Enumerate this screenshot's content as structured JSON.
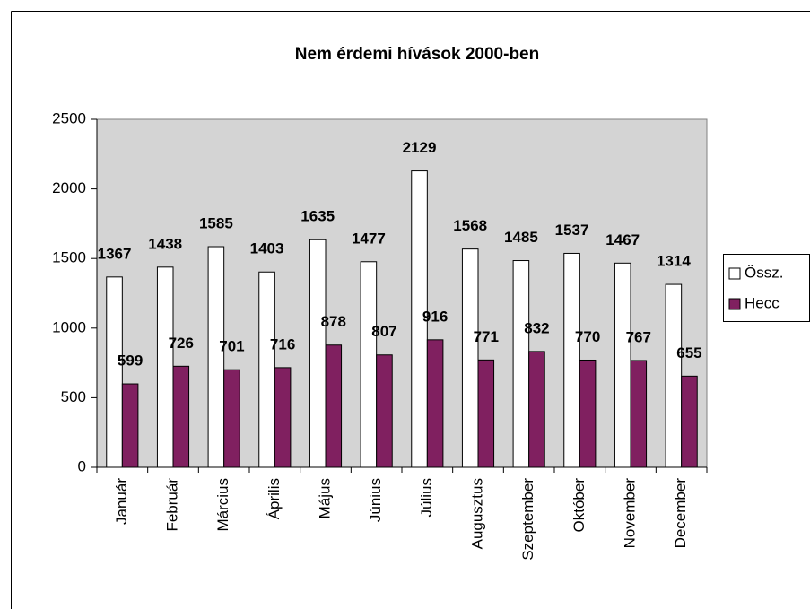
{
  "chart_data": {
    "type": "bar",
    "title": "Nem érdemi hívások 2000-ben",
    "categories": [
      "Január",
      "Február",
      "Március",
      "Április",
      "Május",
      "Június",
      "Július",
      "Augusztus",
      "Szeptember",
      "Október",
      "November",
      "December"
    ],
    "series": [
      {
        "name": "Össz.",
        "color": "#ffffff",
        "values": [
          1367,
          1438,
          1585,
          1403,
          1635,
          1477,
          2129,
          1568,
          1485,
          1537,
          1467,
          1314
        ]
      },
      {
        "name": "Hecc",
        "color": "#802060",
        "values": [
          599,
          726,
          701,
          716,
          878,
          807,
          916,
          771,
          832,
          770,
          767,
          655
        ]
      }
    ],
    "ylim": [
      0,
      2500
    ],
    "yticks": [
      0,
      500,
      1000,
      1500,
      2000,
      2500
    ],
    "grid": false,
    "legend": "right",
    "plot_background": "#d4d4d4"
  }
}
